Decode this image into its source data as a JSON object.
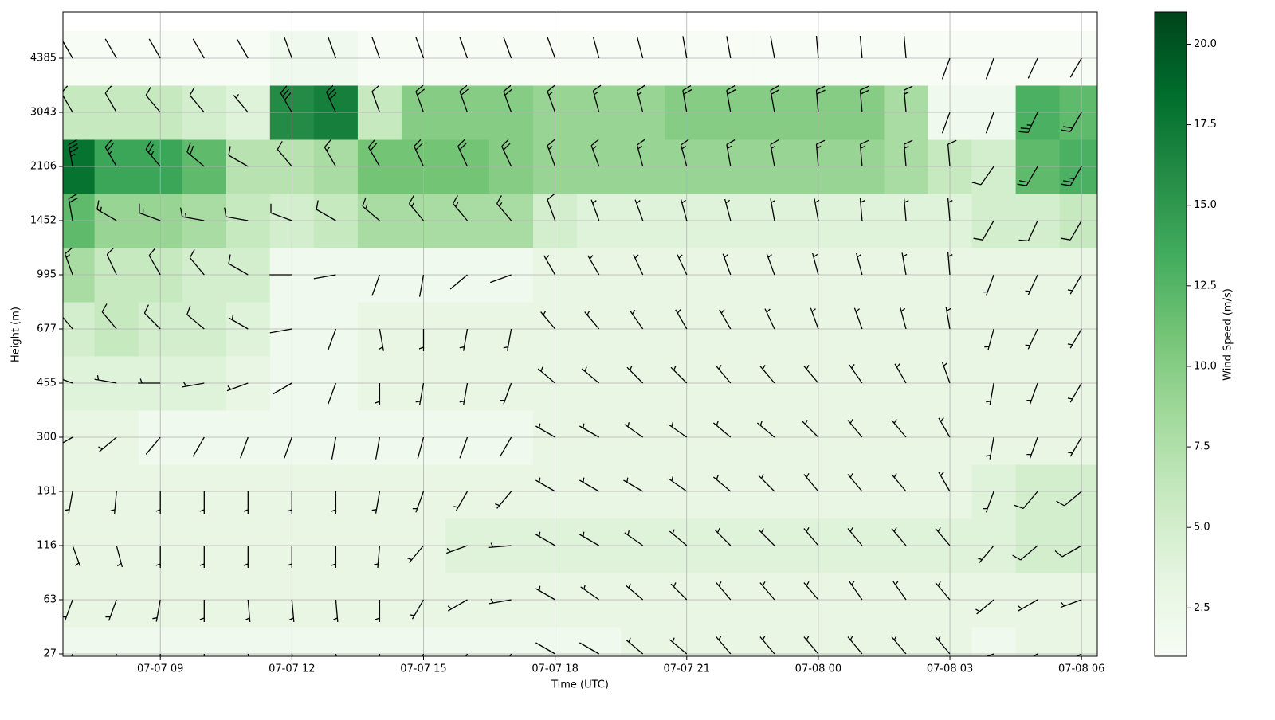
{
  "chart_data": {
    "type": "barb-heatmap",
    "xlabel": "Time (UTC)",
    "ylabel": "Height (m)",
    "colorbar_label": "Wind Speed (m/s)",
    "x": [
      7,
      8,
      9,
      10,
      11,
      12,
      13,
      14,
      15,
      16,
      17,
      18,
      19,
      20,
      21,
      22,
      23,
      24,
      25,
      26,
      27,
      28,
      29,
      30
    ],
    "xlim": [
      6.78,
      30.36
    ],
    "xticks": [
      {
        "value": 9,
        "label": "07-07 09"
      },
      {
        "value": 12,
        "label": "07-07 12"
      },
      {
        "value": 15,
        "label": "07-07 15"
      },
      {
        "value": 18,
        "label": "07-07 18"
      },
      {
        "value": 21,
        "label": "07-07 21"
      },
      {
        "value": 24,
        "label": "07-08 00"
      },
      {
        "value": 27,
        "label": "07-08 03"
      },
      {
        "value": 30,
        "label": "07-08 06"
      }
    ],
    "y": [
      27,
      63,
      116,
      191,
      300,
      455,
      677,
      995,
      1452,
      2106,
      3043,
      4385
    ],
    "grid": true,
    "colormap": [
      "#f7fcf5",
      "#e5f5e0",
      "#c7e9c0",
      "#a1d99b",
      "#74c476",
      "#41ab5d",
      "#238b45",
      "#006d2c",
      "#00441b"
    ],
    "clim": [
      1,
      21
    ],
    "cticks": [
      2.5,
      {
        "value": 5,
        "label": "5.0"
      },
      7.5,
      {
        "value": 10,
        "label": "10.0"
      },
      12.5,
      {
        "value": 15,
        "label": "15.0"
      },
      17.5,
      {
        "value": 20,
        "label": "20.0"
      }
    ],
    "barb_color": "#000000",
    "speed": [
      [
        2,
        2,
        2,
        2,
        2,
        2,
        2,
        2,
        2,
        2,
        2,
        2,
        2,
        3,
        3,
        3,
        3,
        3,
        3,
        3,
        3,
        2,
        3,
        3
      ],
      [
        3,
        3,
        3,
        3,
        3,
        3,
        3,
        3,
        3,
        3,
        3,
        3,
        3,
        3,
        3,
        3,
        3,
        3,
        3,
        3,
        3,
        3,
        3,
        3
      ],
      [
        3,
        3,
        3,
        3,
        3,
        3,
        3,
        3,
        3,
        4,
        4,
        4,
        4,
        4,
        4,
        4,
        4,
        4,
        4,
        4,
        4,
        4,
        5,
        5
      ],
      [
        3,
        3,
        3,
        3,
        3,
        3,
        3,
        3,
        3,
        3,
        3,
        3,
        3,
        3,
        3,
        3,
        3,
        3,
        3,
        3,
        3,
        4,
        5,
        5
      ],
      [
        3,
        3,
        2,
        2,
        2,
        2,
        2,
        2,
        2,
        2,
        2,
        3,
        3,
        3,
        3,
        3,
        3,
        3,
        3,
        3,
        3,
        3,
        3,
        3
      ],
      [
        4,
        4,
        4,
        4,
        3,
        2,
        2,
        3,
        3,
        3,
        3,
        3,
        3,
        3,
        3,
        3,
        3,
        3,
        3,
        3,
        3,
        3,
        3,
        3
      ],
      [
        5,
        6,
        5,
        5,
        4,
        2,
        2,
        3,
        3,
        3,
        3,
        3,
        3,
        3,
        3,
        3,
        3,
        3,
        3,
        3,
        3,
        3,
        3,
        3
      ],
      [
        8,
        6,
        6,
        5,
        5,
        2,
        2,
        2,
        2,
        2,
        2,
        3,
        3,
        3,
        3,
        3,
        3,
        3,
        3,
        3,
        3,
        3,
        3,
        3
      ],
      [
        12,
        9,
        9,
        8,
        6,
        5,
        6,
        8,
        8,
        8,
        8,
        5,
        4,
        4,
        4,
        4,
        4,
        4,
        4,
        4,
        4,
        5,
        5,
        6
      ],
      [
        18,
        14,
        14,
        12,
        7,
        7,
        8,
        11,
        11,
        11,
        10,
        9,
        9,
        9,
        9,
        9,
        9,
        9,
        9,
        8,
        6,
        5,
        12,
        13
      ],
      [
        6,
        6,
        6,
        5,
        4,
        16,
        17,
        6,
        10,
        10,
        10,
        9,
        9,
        9,
        10,
        10,
        10,
        10,
        10,
        8,
        2,
        2,
        13,
        12
      ],
      [
        1,
        1,
        1,
        1,
        1,
        2,
        2,
        1,
        1,
        1,
        1,
        1,
        1,
        1,
        1,
        1,
        1,
        1,
        1,
        1,
        1,
        1,
        1,
        1
      ]
    ],
    "direction": [
      [
        200,
        190,
        180,
        180,
        170,
        170,
        170,
        180,
        200,
        210,
        210,
        300,
        300,
        310,
        310,
        320,
        320,
        320,
        320,
        320,
        320,
        250,
        240,
        240
      ],
      [
        200,
        200,
        190,
        180,
        175,
        175,
        175,
        180,
        210,
        240,
        260,
        300,
        305,
        310,
        315,
        320,
        320,
        320,
        325,
        325,
        320,
        230,
        240,
        250
      ],
      [
        160,
        165,
        180,
        180,
        180,
        180,
        180,
        185,
        220,
        250,
        265,
        300,
        300,
        305,
        310,
        315,
        315,
        320,
        320,
        320,
        320,
        220,
        230,
        240
      ],
      [
        190,
        185,
        180,
        180,
        180,
        180,
        180,
        190,
        200,
        210,
        220,
        300,
        300,
        300,
        305,
        310,
        315,
        320,
        320,
        320,
        330,
        200,
        220,
        230
      ],
      [
        240,
        230,
        220,
        210,
        200,
        200,
        190,
        190,
        195,
        200,
        210,
        300,
        300,
        305,
        305,
        310,
        310,
        315,
        320,
        320,
        330,
        190,
        200,
        210
      ],
      [
        290,
        280,
        270,
        260,
        250,
        240,
        200,
        180,
        190,
        190,
        200,
        310,
        310,
        315,
        315,
        320,
        320,
        320,
        325,
        330,
        340,
        190,
        200,
        210
      ],
      [
        320,
        320,
        315,
        310,
        300,
        260,
        200,
        170,
        180,
        190,
        190,
        320,
        320,
        325,
        330,
        330,
        335,
        340,
        340,
        345,
        350,
        195,
        205,
        210
      ],
      [
        340,
        335,
        330,
        320,
        300,
        270,
        260,
        200,
        190,
        230,
        250,
        330,
        330,
        335,
        335,
        340,
        340,
        345,
        345,
        350,
        355,
        200,
        205,
        210
      ],
      [
        350,
        300,
        290,
        280,
        280,
        290,
        300,
        310,
        320,
        320,
        320,
        340,
        340,
        340,
        345,
        345,
        350,
        350,
        355,
        355,
        355,
        210,
        205,
        210
      ],
      [
        350,
        330,
        320,
        310,
        300,
        320,
        330,
        330,
        335,
        335,
        335,
        340,
        340,
        345,
        345,
        350,
        350,
        355,
        355,
        355,
        355,
        215,
        210,
        210
      ],
      [
        330,
        330,
        320,
        320,
        320,
        330,
        335,
        340,
        340,
        340,
        340,
        340,
        345,
        345,
        350,
        350,
        350,
        355,
        355,
        355,
        200,
        200,
        205,
        210
      ],
      [
        330,
        330,
        330,
        330,
        330,
        340,
        340,
        340,
        340,
        340,
        340,
        340,
        345,
        345,
        350,
        350,
        350,
        355,
        355,
        355,
        200,
        200,
        205,
        210
      ]
    ]
  }
}
